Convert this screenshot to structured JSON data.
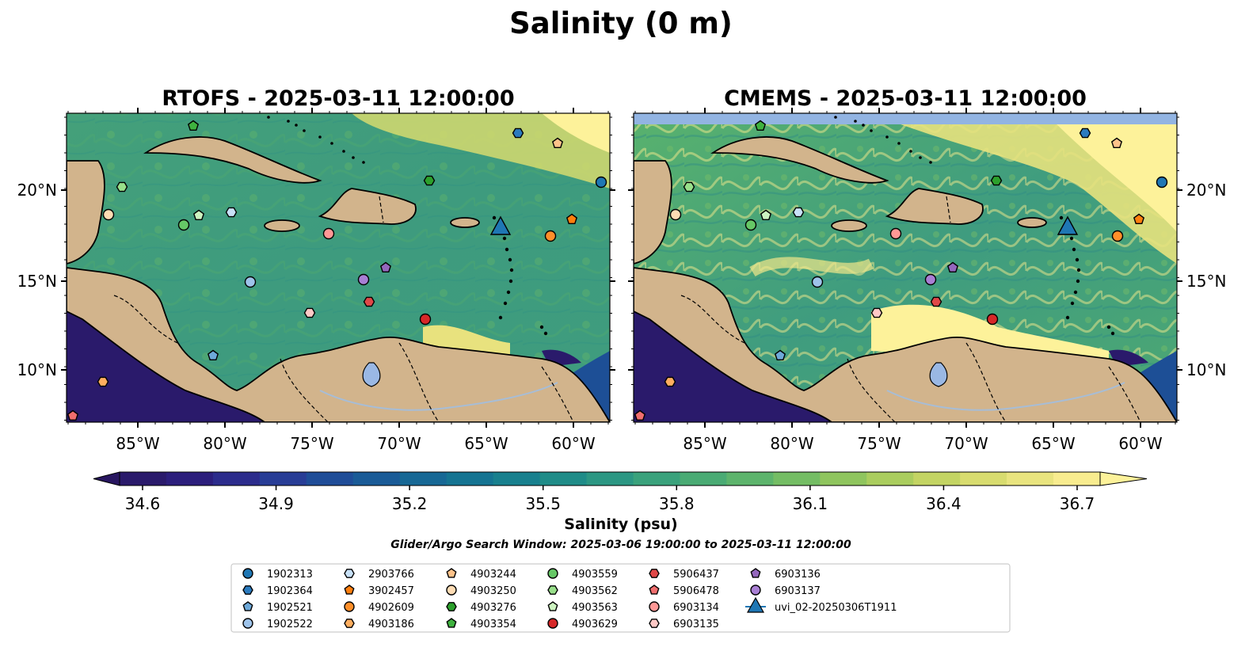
{
  "figure_title": "Salinity (0 m)",
  "panels": [
    {
      "title": "RTOFS - 2025-03-11 12:00:00",
      "model": "RTOFS"
    },
    {
      "title": "CMEMS - 2025-03-11 12:00:00",
      "model": "CMEMS"
    }
  ],
  "lon_ticks": [
    "85°W",
    "80°W",
    "75°W",
    "70°W",
    "65°W",
    "60°W"
  ],
  "lat_ticks": [
    "20°N",
    "15°N",
    "10°N"
  ],
  "colorbar": {
    "label": "Salinity (psu)",
    "ticks": [
      "34.6",
      "34.9",
      "35.2",
      "35.5",
      "35.8",
      "36.1",
      "36.4",
      "36.7"
    ],
    "min": 34.6,
    "max": 36.7,
    "colors": [
      "#2a1a6b",
      "#2c1e7c",
      "#2c2c8c",
      "#283d96",
      "#1f4d98",
      "#1a5b97",
      "#176895",
      "#157492",
      "#18808e",
      "#1f8c88",
      "#2c9783",
      "#3aa27c",
      "#4aab74",
      "#5db46c",
      "#74bd64",
      "#8fc55e",
      "#aacd5e",
      "#c3d463",
      "#d8dc6f",
      "#e9e47f",
      "#f8ec8f"
    ],
    "over_color": "#fdf29a",
    "under_color": "#281660"
  },
  "search_window": "Glider/Argo Search Window: 2025-03-06 19:00:00 to 2025-03-11 12:00:00",
  "land_color": "#d2b48c",
  "ocean_palette": {
    "deep": "#2a1a6b",
    "mid": "#3a9a85",
    "salty": "#5db56a",
    "fresh": "#fdf29a",
    "lake": "#9ab8e4"
  },
  "legend": [
    {
      "id": "1902313",
      "shape": "circle",
      "color": "#1f77b4"
    },
    {
      "id": "1902364",
      "shape": "hexagon",
      "color": "#2b7bbf"
    },
    {
      "id": "1902521",
      "shape": "pentagon",
      "color": "#6ea9d9"
    },
    {
      "id": "1902522",
      "shape": "circle",
      "color": "#9ec3ea"
    },
    {
      "id": "2903766",
      "shape": "hexagon",
      "color": "#c8e1f7"
    },
    {
      "id": "3902457",
      "shape": "pentagon",
      "color": "#ff7f0e"
    },
    {
      "id": "4902609",
      "shape": "circle",
      "color": "#ff8f2a"
    },
    {
      "id": "4903186",
      "shape": "hexagon",
      "color": "#ffae5f"
    },
    {
      "id": "4903244",
      "shape": "pentagon",
      "color": "#ffc38a"
    },
    {
      "id": "4903250",
      "shape": "circle",
      "color": "#ffdcb4"
    },
    {
      "id": "4903276",
      "shape": "hexagon",
      "color": "#2ca02c"
    },
    {
      "id": "4903354",
      "shape": "pentagon",
      "color": "#3fb23f"
    },
    {
      "id": "4903559",
      "shape": "circle",
      "color": "#66c766"
    },
    {
      "id": "4903562",
      "shape": "hexagon",
      "color": "#98df8a"
    },
    {
      "id": "4903563",
      "shape": "pentagon",
      "color": "#cdf3c0"
    },
    {
      "id": "4903629",
      "shape": "circle",
      "color": "#d62728"
    },
    {
      "id": "5906437",
      "shape": "hexagon",
      "color": "#e04848"
    },
    {
      "id": "5906478",
      "shape": "pentagon",
      "color": "#f06e6e"
    },
    {
      "id": "6903134",
      "shape": "circle",
      "color": "#ff9896"
    },
    {
      "id": "6903135",
      "shape": "hexagon",
      "color": "#ffc9c6"
    },
    {
      "id": "6903136",
      "shape": "pentagon",
      "color": "#9467bd"
    },
    {
      "id": "6903137",
      "shape": "circle",
      "color": "#a97fd4"
    },
    {
      "id": "uvi_02-20250306T1911",
      "shape": "triangle",
      "color": "#1f77b4"
    }
  ]
}
